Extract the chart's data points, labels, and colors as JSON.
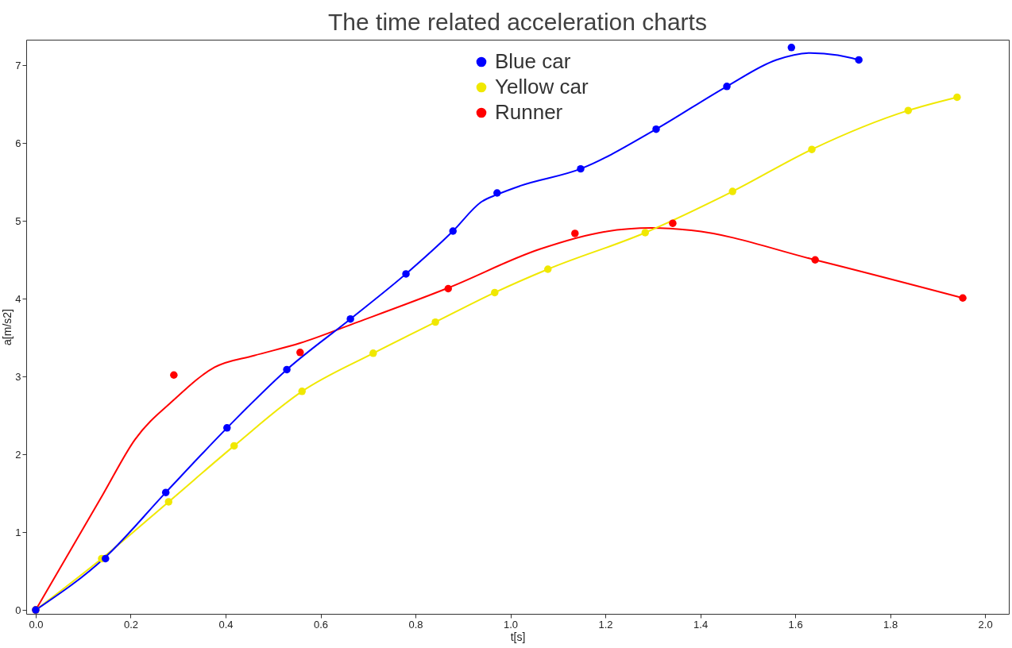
{
  "chart_data": {
    "type": "line",
    "title": "The time related acceleration charts",
    "xlabel": "t[s]",
    "ylabel": "a[m/s2]",
    "xlim": [
      -0.02,
      2.05
    ],
    "ylim": [
      -0.05,
      7.33
    ],
    "xticks": [
      {
        "value": 0,
        "label": "0.0"
      },
      0.2,
      0.4,
      0.6,
      0.8,
      {
        "value": 1,
        "label": "1.0"
      },
      1.2,
      1.4,
      1.6,
      1.8,
      {
        "value": 2,
        "label": "2.0"
      }
    ],
    "yticks": [
      0,
      1,
      2,
      3,
      4,
      5,
      6,
      7
    ],
    "grid": false,
    "legend": "top",
    "marker": "circle",
    "line_style": "solid",
    "series": [
      {
        "name": "Blue car",
        "type": "scatter",
        "color": "#0000ff",
        "x": [
          0,
          0.147,
          0.274,
          0.403,
          0.529,
          0.663,
          0.78,
          0.879,
          0.972,
          1.148,
          1.307,
          1.456,
          1.592,
          1.734
        ],
        "values": [
          0,
          0.66,
          1.51,
          2.34,
          3.09,
          3.74,
          4.32,
          4.87,
          5.36,
          5.67,
          6.18,
          6.73,
          7.23,
          7.07
        ]
      },
      {
        "name": "Yellow car",
        "type": "scatter",
        "color": "#f0e800",
        "x": [
          0,
          0.139,
          0.28,
          0.418,
          0.561,
          0.711,
          0.842,
          0.967,
          1.079,
          1.284,
          1.468,
          1.635,
          1.838,
          1.941
        ],
        "values": [
          0,
          0.66,
          1.39,
          2.11,
          2.81,
          3.3,
          3.7,
          4.08,
          4.38,
          4.85,
          5.38,
          5.92,
          6.42,
          6.59
        ]
      },
      {
        "name": "Runner",
        "type": "scatter",
        "color": "#ff0000",
        "x": [
          0,
          0.291,
          0.557,
          0.869,
          1.136,
          1.342,
          1.642,
          1.953
        ],
        "values": [
          0,
          3.02,
          3.31,
          4.13,
          4.84,
          4.97,
          4.5,
          4.01
        ]
      },
      {
        "marker": "none",
        "color": "#0000ff",
        "x": [
          0,
          0.147,
          0.274,
          0.403,
          0.529,
          0.663,
          0.78,
          0.879,
          0.94,
          0.972,
          1.02,
          1.148,
          1.307,
          1.456,
          1.56,
          1.632,
          1.69,
          1.734
        ],
        "values": [
          0,
          0.68,
          1.51,
          2.34,
          3.09,
          3.74,
          4.32,
          4.87,
          5.25,
          5.34,
          5.45,
          5.67,
          6.18,
          6.73,
          7.07,
          7.16,
          7.13,
          7.07
        ]
      },
      {
        "marker": "none",
        "color": "#f0e800",
        "x": [
          0,
          0.139,
          0.28,
          0.418,
          0.561,
          0.711,
          0.842,
          0.967,
          1.079,
          1.284,
          1.468,
          1.635,
          1.838,
          1.941
        ],
        "values": [
          0,
          0.66,
          1.39,
          2.11,
          2.81,
          3.3,
          3.7,
          4.08,
          4.38,
          4.85,
          5.38,
          5.92,
          6.42,
          6.59
        ]
      },
      {
        "marker": "none",
        "color": "#ff0000",
        "x": [
          0,
          0.142,
          0.209,
          0.291,
          0.377,
          0.46,
          0.557,
          0.678,
          0.869,
          1.063,
          1.197,
          1.297,
          1.381,
          1.642,
          1.953
        ],
        "values": [
          0,
          1.49,
          2.19,
          2.7,
          3.12,
          3.27,
          3.43,
          3.7,
          4.14,
          4.64,
          4.86,
          4.91,
          4.88,
          4.5,
          4.01
        ]
      }
    ]
  }
}
